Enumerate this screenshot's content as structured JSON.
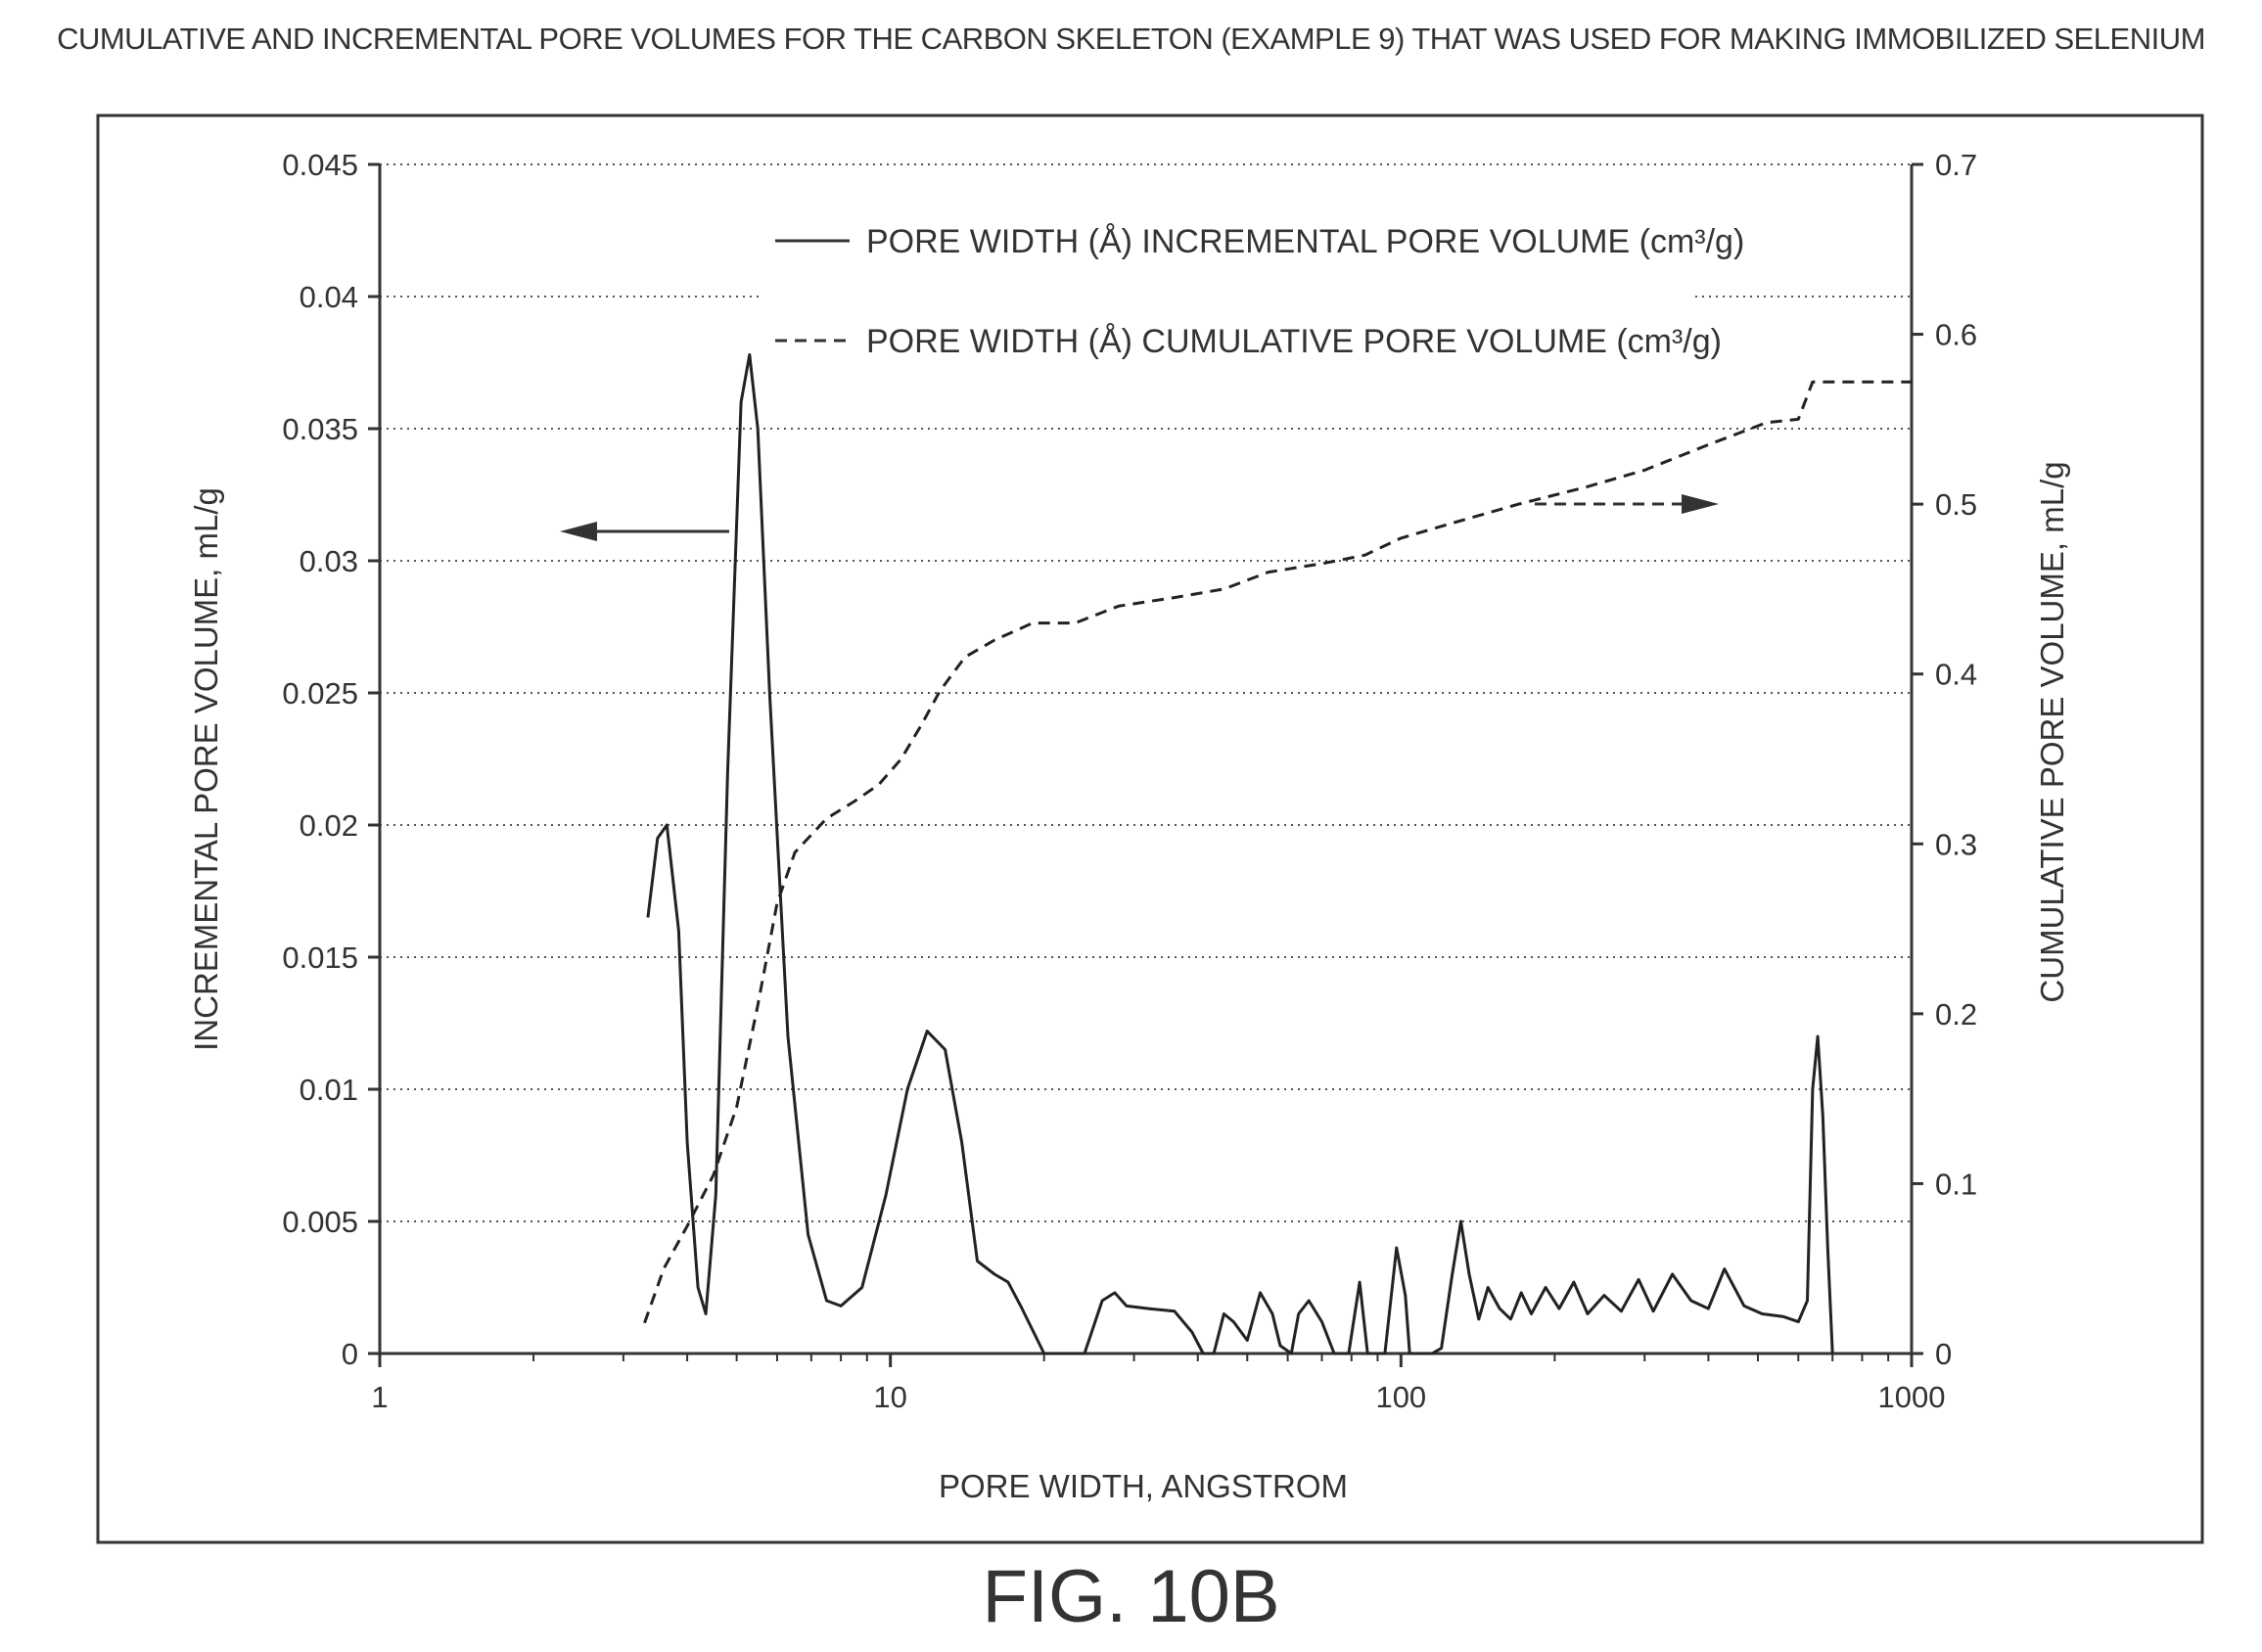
{
  "chart_data": {
    "type": "line",
    "title": "CUMULATIVE AND INCREMENTAL PORE VOLUMES FOR THE CARBON SKELETON (EXAMPLE 9) THAT WAS USED FOR MAKING IMMOBILIZED SELENIUM",
    "caption": "FIG. 10B",
    "xlabel": "PORE WIDTH, ANGSTROM",
    "ylabel_left": "INCREMENTAL PORE VOLUME, mL/g",
    "ylabel_right": "CUMULATIVE PORE VOLUME, mL/g",
    "x_scale": "log",
    "xlim": [
      1,
      1000
    ],
    "ylim_left": [
      0,
      0.045
    ],
    "ylim_right": [
      0,
      0.7
    ],
    "x_ticks": [
      "1",
      "10",
      "100",
      "1000"
    ],
    "y_ticks_left": [
      "0",
      "0.005",
      "0.01",
      "0.015",
      "0.02",
      "0.025",
      "0.03",
      "0.035",
      "0.04",
      "0.045"
    ],
    "y_ticks_right": [
      "0",
      "0.1",
      "0.2",
      "0.3",
      "0.4",
      "0.5",
      "0.6",
      "0.7"
    ],
    "grid": "horizontal dotted",
    "legend": {
      "placement": "top-center",
      "entries": [
        {
          "style": "solid",
          "label": "PORE WIDTH (Å) INCREMENTAL PORE VOLUME (cm³/g)"
        },
        {
          "style": "dashed",
          "label": "PORE WIDTH (Å) CUMULATIVE PORE VOLUME (cm³/g)"
        }
      ]
    },
    "series": [
      {
        "name": "PORE WIDTH (Å) INCREMENTAL PORE VOLUME (cm³/g)",
        "axis": "left",
        "style": "solid",
        "points": [
          [
            3.35,
            0.0165
          ],
          [
            3.5,
            0.0195
          ],
          [
            3.65,
            0.02
          ],
          [
            3.85,
            0.016
          ],
          [
            4.0,
            0.008
          ],
          [
            4.2,
            0.0025
          ],
          [
            4.35,
            0.0015
          ],
          [
            4.55,
            0.006
          ],
          [
            4.8,
            0.022
          ],
          [
            5.1,
            0.036
          ],
          [
            5.3,
            0.0378
          ],
          [
            5.5,
            0.035
          ],
          [
            5.8,
            0.025
          ],
          [
            6.3,
            0.012
          ],
          [
            6.9,
            0.0045
          ],
          [
            7.5,
            0.002
          ],
          [
            8.0,
            0.0018
          ],
          [
            8.8,
            0.0025
          ],
          [
            9.8,
            0.006
          ],
          [
            10.8,
            0.01
          ],
          [
            11.8,
            0.0122
          ],
          [
            12.8,
            0.0115
          ],
          [
            13.8,
            0.008
          ],
          [
            14.8,
            0.0035
          ],
          [
            16,
            0.003
          ],
          [
            17,
            0.0027
          ],
          [
            18,
            0.0018
          ],
          [
            20,
            0
          ],
          [
            24,
            0
          ],
          [
            26,
            0.002
          ],
          [
            27.5,
            0.0023
          ],
          [
            29,
            0.0018
          ],
          [
            32,
            0.0017
          ],
          [
            36,
            0.0016
          ],
          [
            39,
            0.0008
          ],
          [
            41,
            0
          ],
          [
            43,
            0
          ],
          [
            45,
            0.0015
          ],
          [
            47,
            0.0012
          ],
          [
            50,
            0.0005
          ],
          [
            53,
            0.0023
          ],
          [
            56,
            0.0015
          ],
          [
            58,
            0.0003
          ],
          [
            61,
            0
          ],
          [
            63,
            0.0015
          ],
          [
            66,
            0.002
          ],
          [
            70,
            0.0012
          ],
          [
            74,
            0
          ],
          [
            79,
            0
          ],
          [
            83,
            0.0027
          ],
          [
            86,
            0
          ],
          [
            93,
            0
          ],
          [
            98,
            0.004
          ],
          [
            102,
            0.0022
          ],
          [
            104,
            0
          ],
          [
            115,
            0
          ],
          [
            120,
            0.0002
          ],
          [
            126,
            0.003
          ],
          [
            131,
            0.005
          ],
          [
            136,
            0.003
          ],
          [
            142,
            0.0013
          ],
          [
            148,
            0.0025
          ],
          [
            156,
            0.0017
          ],
          [
            164,
            0.0013
          ],
          [
            172,
            0.0023
          ],
          [
            180,
            0.0015
          ],
          [
            192,
            0.0025
          ],
          [
            204,
            0.0017
          ],
          [
            218,
            0.0027
          ],
          [
            232,
            0.0015
          ],
          [
            250,
            0.0022
          ],
          [
            270,
            0.0016
          ],
          [
            292,
            0.0028
          ],
          [
            312,
            0.0016
          ],
          [
            340,
            0.003
          ],
          [
            370,
            0.002
          ],
          [
            400,
            0.0017
          ],
          [
            430,
            0.0032
          ],
          [
            470,
            0.0018
          ],
          [
            510,
            0.0015
          ],
          [
            560,
            0.0014
          ],
          [
            600,
            0.0012
          ],
          [
            625,
            0.002
          ],
          [
            640,
            0.01
          ],
          [
            655,
            0.012
          ],
          [
            670,
            0.009
          ],
          [
            685,
            0.004
          ],
          [
            700,
            0
          ]
        ]
      },
      {
        "name": "PORE WIDTH (Å) CUMULATIVE PORE VOLUME (cm³/g)",
        "axis": "right",
        "style": "dashed",
        "points": [
          [
            3.3,
            0.018
          ],
          [
            3.6,
            0.05
          ],
          [
            4.0,
            0.075
          ],
          [
            4.5,
            0.105
          ],
          [
            5.0,
            0.145
          ],
          [
            5.5,
            0.205
          ],
          [
            6.0,
            0.265
          ],
          [
            6.5,
            0.295
          ],
          [
            7.5,
            0.315
          ],
          [
            8.5,
            0.325
          ],
          [
            9.5,
            0.335
          ],
          [
            10.5,
            0.35
          ],
          [
            11.5,
            0.37
          ],
          [
            12.5,
            0.39
          ],
          [
            14,
            0.41
          ],
          [
            16,
            0.42
          ],
          [
            19,
            0.43
          ],
          [
            23,
            0.43
          ],
          [
            28,
            0.44
          ],
          [
            36,
            0.445
          ],
          [
            45,
            0.45
          ],
          [
            55,
            0.46
          ],
          [
            70,
            0.465
          ],
          [
            85,
            0.47
          ],
          [
            100,
            0.48
          ],
          [
            130,
            0.49
          ],
          [
            170,
            0.5
          ],
          [
            230,
            0.51
          ],
          [
            300,
            0.52
          ],
          [
            400,
            0.535
          ],
          [
            520,
            0.548
          ],
          [
            600,
            0.55
          ],
          [
            640,
            0.572
          ],
          [
            1000,
            0.572
          ]
        ]
      }
    ]
  }
}
